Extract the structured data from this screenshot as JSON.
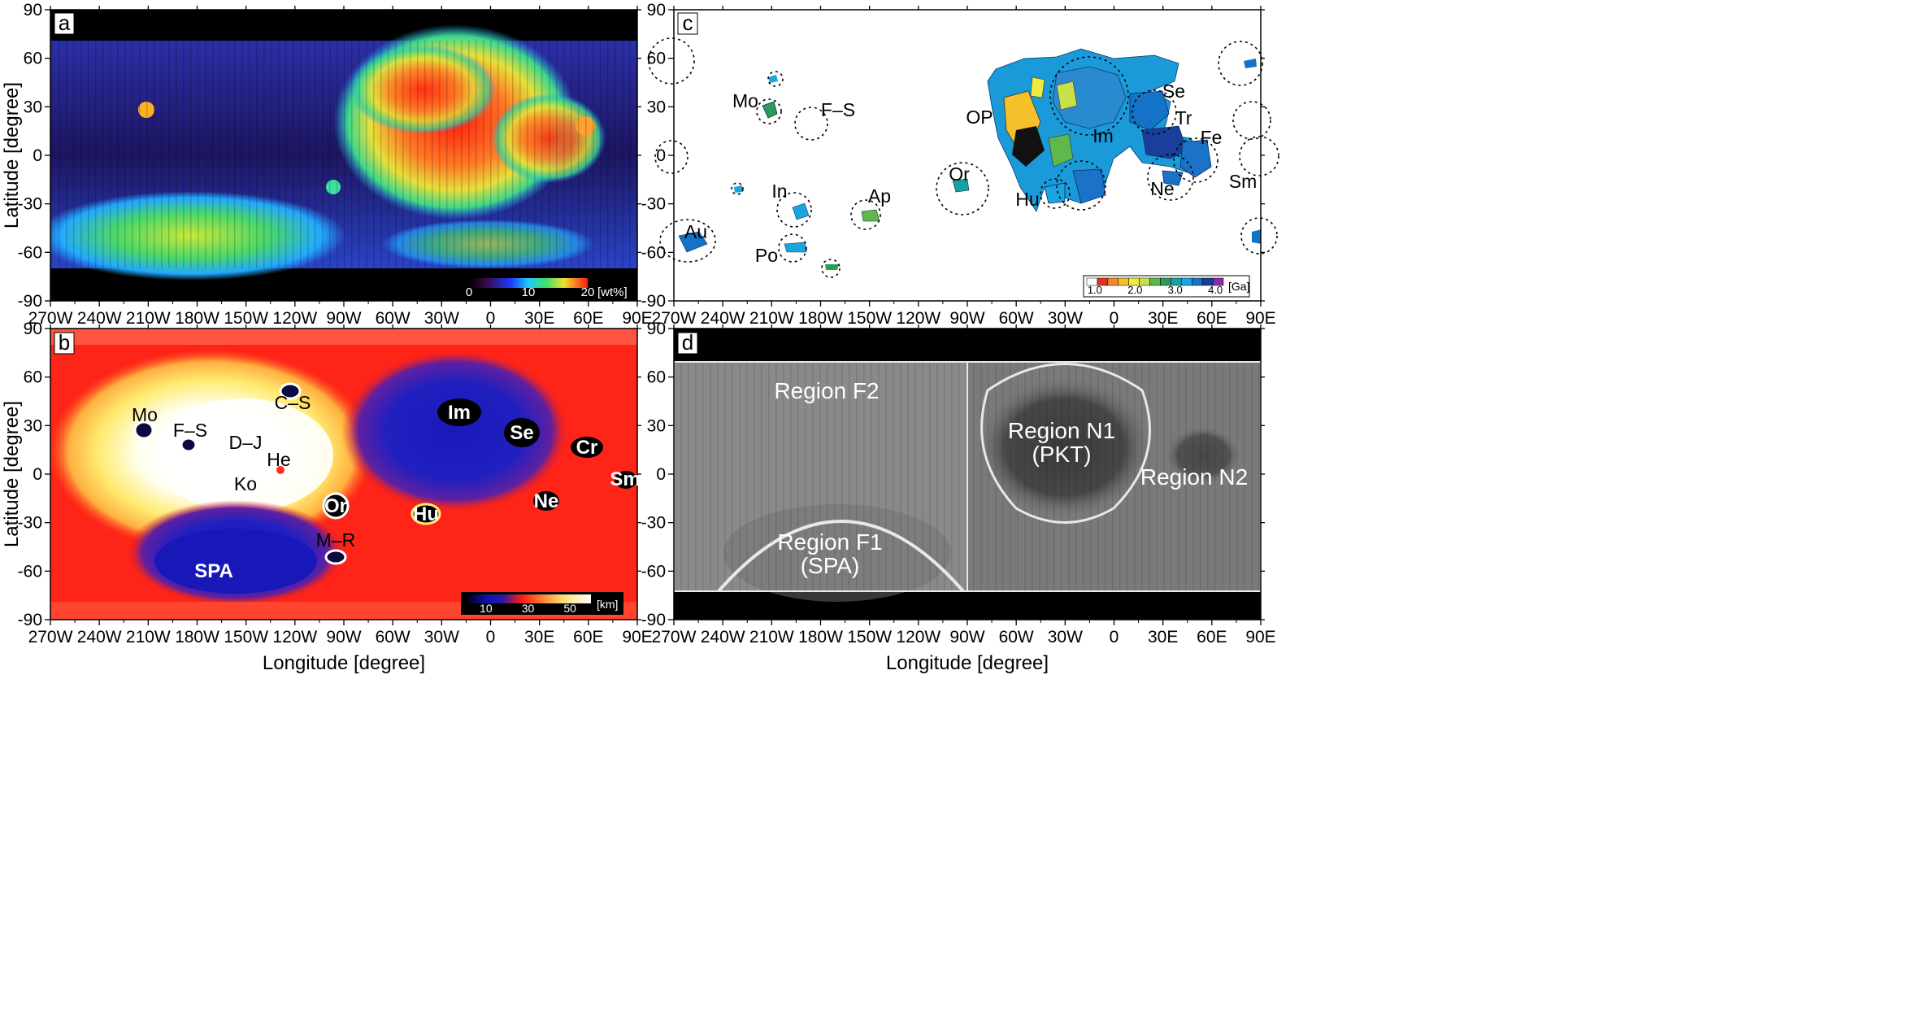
{
  "figure": {
    "x_axis_label": "Longitude [degree]",
    "y_axis_label": "Latitude [degree]",
    "lon_ticks": [
      "270W",
      "240W",
      "210W",
      "180W",
      "150W",
      "120W",
      "90W",
      "60W",
      "30W",
      "0",
      "30E",
      "60E",
      "90E"
    ],
    "lat_ticks": [
      "90",
      "60",
      "30",
      "0",
      "-30",
      "-60",
      "-90"
    ],
    "lon_range": [
      -270,
      90
    ],
    "lat_range": [
      -90,
      90
    ]
  },
  "panels": {
    "a": {
      "label": "a",
      "colorbar": {
        "min_label": "0",
        "mid_label": "10",
        "max_label": "20",
        "unit": "[wt%]",
        "range": [
          0,
          20
        ]
      }
    },
    "b": {
      "label": "b",
      "colorbar": {
        "tick_labels": [
          "10",
          "30",
          "50"
        ],
        "unit": "[km]",
        "range": [
          0,
          60
        ]
      },
      "basin_labels": [
        "Mo",
        "F–S",
        "C–S",
        "D–J",
        "He",
        "Ko",
        "Or",
        "M–R",
        "SPA",
        "Im",
        "Se",
        "Cr",
        "Sm",
        "Hu",
        "Ne"
      ]
    },
    "c": {
      "label": "c",
      "colorbar": {
        "tick_labels": [
          "1.0",
          "2.0",
          "3.0",
          "4.0"
        ],
        "unit": "[Ga]",
        "range": [
          0.8,
          4.2
        ]
      },
      "basin_labels": [
        "Mo",
        "F–S",
        "In",
        "Ap",
        "Au",
        "Po",
        "Or",
        "OP",
        "Hu",
        "Im",
        "Se",
        "Tr",
        "Fe",
        "Ne",
        "Sm"
      ]
    },
    "d": {
      "label": "d",
      "regions": {
        "f2": "Region F2",
        "f1_line1": "Region F1",
        "f1_line2": "(SPA)",
        "n1_line1": "Region N1",
        "n1_line2": "(PKT)",
        "n2": "Region N2"
      }
    }
  },
  "colors": {
    "rainbow": [
      "#1a0a30",
      "#2a1a8a",
      "#2f3fe0",
      "#22a0ff",
      "#2ae0c0",
      "#4cd84a",
      "#d6e83a",
      "#ffb02a",
      "#ff4a22",
      "#e01818"
    ],
    "thickness": [
      "#0a0a10",
      "#1515c0",
      "#ff2a10",
      "#ff8a30",
      "#ffe070",
      "#ffffd8",
      "#ffffff"
    ],
    "age": [
      "#ffffff",
      "#e03020",
      "#f08a30",
      "#f5c02a",
      "#ecec40",
      "#c8e04a",
      "#5fb84a",
      "#2e9a5a",
      "#19a0a0",
      "#1aa4e0",
      "#1473c8",
      "#1a3f9a",
      "#8a2aa0"
    ]
  }
}
